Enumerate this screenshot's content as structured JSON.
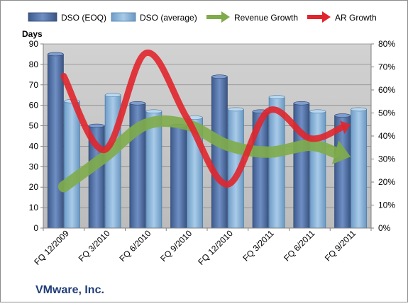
{
  "chart_data": {
    "type": "bar",
    "company": "VMware, Inc.",
    "ylabel": "Days",
    "categories": [
      "FQ 12/2009",
      "FQ 3/2010",
      "FQ 6/2010",
      "FQ 9/2010",
      "FQ 12/2010",
      "FQ 3/2011",
      "FQ 6/2011",
      "FQ 9/2011"
    ],
    "ylim": [
      0,
      90
    ],
    "yticks": [
      "0",
      "10",
      "20",
      "30",
      "40",
      "50",
      "60",
      "70",
      "80",
      "90"
    ],
    "y2lim": [
      0,
      80
    ],
    "y2ticks": [
      "0%",
      "10%",
      "20%",
      "30%",
      "40%",
      "50%",
      "60%",
      "70%",
      "80%"
    ],
    "series": [
      {
        "name": "DSO (EOQ)",
        "kind": "bar",
        "axis": "left",
        "values": [
          85,
          50,
          61,
          50,
          74,
          57,
          61,
          55
        ]
      },
      {
        "name": "DSO (average)",
        "kind": "bar",
        "axis": "left",
        "values": [
          62,
          65,
          57,
          54,
          58,
          64,
          57,
          58
        ]
      },
      {
        "name": "Revenue Growth",
        "kind": "arrow-line",
        "axis": "right",
        "values": [
          18,
          31,
          45,
          45,
          36,
          33,
          36,
          31
        ]
      },
      {
        "name": "AR Growth",
        "kind": "arrow-line",
        "axis": "right",
        "values": [
          66,
          34,
          76,
          48,
          19,
          51,
          39,
          45
        ]
      }
    ],
    "colors": {
      "plot_bg": "#c0c0c0",
      "bar_eoq": "#5b7bb0",
      "bar_eoq_dark": "#2e4670",
      "bar_avg": "#8cb4d8",
      "bar_avg_dark": "#4d7ea8",
      "revenue_growth": "#7fac4a",
      "ar_growth": "#e0262c"
    },
    "grid": true,
    "legend_position": "top"
  }
}
